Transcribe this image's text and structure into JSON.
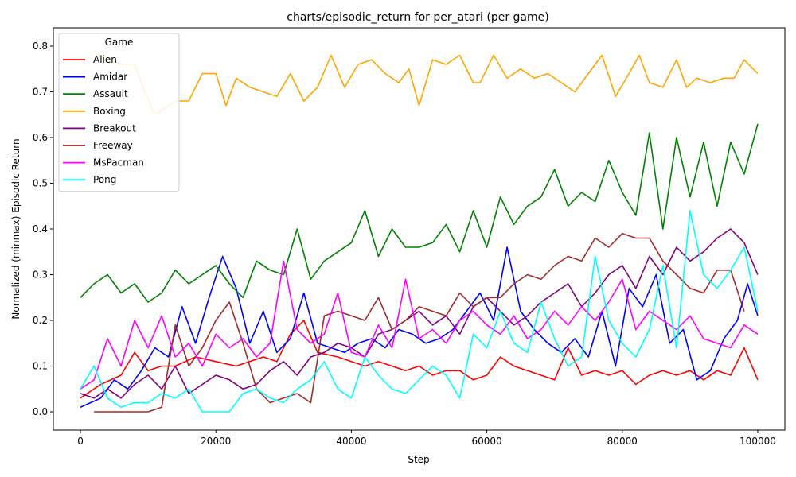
{
  "chart_data": {
    "type": "line",
    "title": "charts/episodic_return for per_atari (per game)",
    "xlabel": "Step",
    "ylabel": "Normalized (minmax) Episodic Return",
    "xlim": [
      -4000,
      104000
    ],
    "ylim": [
      -0.04,
      0.84
    ],
    "xticks": [
      0,
      20000,
      40000,
      60000,
      80000,
      100000
    ],
    "yticks": [
      0.0,
      0.1,
      0.2,
      0.3,
      0.4,
      0.5,
      0.6,
      0.7,
      0.8
    ],
    "ytick_labels": [
      "0.0",
      "0.1",
      "0.2",
      "0.3",
      "0.4",
      "0.5",
      "0.6",
      "0.7",
      "0.8"
    ],
    "grid": false,
    "legend": {
      "title": "Game",
      "placement": "top-left"
    },
    "series": [
      {
        "name": "Alien",
        "color": "#ff0000",
        "x": [
          0,
          3000,
          6000,
          8000,
          10000,
          12000,
          14000,
          17000,
          20000,
          23000,
          25000,
          27000,
          29000,
          31000,
          33000,
          35000,
          38000,
          40000,
          42000,
          44000,
          46000,
          48000,
          50000,
          52000,
          54000,
          56000,
          58000,
          60000,
          62000,
          64000,
          66000,
          68000,
          70000,
          72000,
          74000,
          76000,
          78000,
          80000,
          82000,
          84000,
          86000,
          88000,
          90000,
          92000,
          94000,
          96000,
          98000,
          100000
        ],
        "y": [
          0.03,
          0.06,
          0.08,
          0.13,
          0.09,
          0.1,
          0.1,
          0.12,
          0.11,
          0.1,
          0.11,
          0.12,
          0.11,
          0.17,
          0.2,
          0.13,
          0.12,
          0.11,
          0.1,
          0.11,
          0.1,
          0.09,
          0.1,
          0.08,
          0.09,
          0.09,
          0.07,
          0.08,
          0.12,
          0.1,
          0.09,
          0.08,
          0.07,
          0.14,
          0.08,
          0.09,
          0.08,
          0.09,
          0.06,
          0.08,
          0.09,
          0.08,
          0.09,
          0.07,
          0.09,
          0.08,
          0.14,
          0.07
        ]
      },
      {
        "name": "Amidar",
        "color": "#0000ff",
        "x": [
          0,
          3000,
          5000,
          7000,
          9000,
          11000,
          13000,
          15000,
          17000,
          19000,
          21000,
          23000,
          25000,
          27000,
          29000,
          31000,
          33000,
          35000,
          37000,
          39000,
          41000,
          43000,
          45000,
          47000,
          49000,
          51000,
          53000,
          55000,
          57000,
          59000,
          61000,
          63000,
          65000,
          67000,
          69000,
          71000,
          73000,
          75000,
          77000,
          79000,
          81000,
          83000,
          85000,
          87000,
          89000,
          91000,
          93000,
          95000,
          97000,
          98500,
          100000
        ],
        "y": [
          0.01,
          0.03,
          0.07,
          0.05,
          0.09,
          0.14,
          0.12,
          0.23,
          0.15,
          0.25,
          0.34,
          0.27,
          0.15,
          0.22,
          0.13,
          0.16,
          0.26,
          0.15,
          0.14,
          0.13,
          0.15,
          0.16,
          0.14,
          0.18,
          0.17,
          0.15,
          0.16,
          0.18,
          0.22,
          0.26,
          0.2,
          0.36,
          0.22,
          0.18,
          0.15,
          0.13,
          0.16,
          0.12,
          0.22,
          0.1,
          0.27,
          0.23,
          0.3,
          0.15,
          0.18,
          0.07,
          0.09,
          0.16,
          0.2,
          0.28,
          0.21
        ]
      },
      {
        "name": "Assault",
        "color": "#008000",
        "x": [
          0,
          2000,
          4000,
          6000,
          8000,
          10000,
          12000,
          14000,
          16000,
          18000,
          20000,
          22000,
          24000,
          26000,
          28000,
          30000,
          32000,
          34000,
          36000,
          38000,
          40000,
          42000,
          44000,
          46000,
          48000,
          50000,
          52000,
          54000,
          56000,
          58000,
          60000,
          62000,
          64000,
          66000,
          68000,
          70000,
          72000,
          74000,
          76000,
          78000,
          80000,
          82000,
          84000,
          86000,
          88000,
          90000,
          92000,
          94000,
          96000,
          98000,
          100000
        ],
        "y": [
          0.25,
          0.28,
          0.3,
          0.26,
          0.28,
          0.24,
          0.26,
          0.31,
          0.28,
          0.3,
          0.32,
          0.28,
          0.25,
          0.33,
          0.31,
          0.3,
          0.4,
          0.29,
          0.33,
          0.35,
          0.37,
          0.44,
          0.34,
          0.4,
          0.36,
          0.36,
          0.37,
          0.41,
          0.35,
          0.44,
          0.36,
          0.47,
          0.41,
          0.45,
          0.47,
          0.53,
          0.45,
          0.48,
          0.46,
          0.55,
          0.48,
          0.43,
          0.61,
          0.4,
          0.6,
          0.47,
          0.59,
          0.45,
          0.59,
          0.52,
          0.63
        ]
      },
      {
        "name": "Boxing",
        "color": "#ffa500",
        "x": [
          2000,
          4000,
          6000,
          8000,
          9500,
          11000,
          14000,
          16000,
          18000,
          20000,
          21500,
          23000,
          25000,
          27000,
          29000,
          31000,
          33000,
          35000,
          37000,
          39000,
          41000,
          43000,
          45000,
          47000,
          48500,
          50000,
          52000,
          54000,
          56000,
          58000,
          59000,
          61000,
          63000,
          65000,
          67000,
          69000,
          71000,
          73000,
          75000,
          77000,
          79000,
          81000,
          82500,
          84000,
          86000,
          88000,
          89500,
          91000,
          93000,
          95000,
          96500,
          98000,
          100000
        ],
        "y": [
          0.79,
          0.77,
          0.76,
          0.76,
          0.7,
          0.65,
          0.68,
          0.68,
          0.74,
          0.74,
          0.67,
          0.73,
          0.71,
          0.7,
          0.69,
          0.74,
          0.68,
          0.71,
          0.78,
          0.71,
          0.76,
          0.77,
          0.74,
          0.72,
          0.75,
          0.67,
          0.77,
          0.76,
          0.78,
          0.72,
          0.72,
          0.78,
          0.73,
          0.75,
          0.73,
          0.74,
          0.72,
          0.7,
          0.74,
          0.78,
          0.69,
          0.74,
          0.78,
          0.72,
          0.71,
          0.77,
          0.71,
          0.73,
          0.72,
          0.73,
          0.73,
          0.77,
          0.74
        ]
      },
      {
        "name": "Breakout",
        "color": "#800080",
        "x": [
          0,
          2000,
          4000,
          6000,
          8000,
          10000,
          12000,
          14000,
          16000,
          18000,
          20000,
          22000,
          24000,
          26000,
          28000,
          30000,
          32000,
          34000,
          36000,
          38000,
          40000,
          42000,
          44000,
          46000,
          48000,
          50000,
          52000,
          54000,
          56000,
          58000,
          60000,
          62000,
          64000,
          66000,
          68000,
          70000,
          72000,
          74000,
          76000,
          78000,
          80000,
          82000,
          84000,
          86000,
          88000,
          90000,
          92000,
          94000,
          96000,
          98000,
          100000
        ],
        "y": [
          0.04,
          0.03,
          0.05,
          0.03,
          0.06,
          0.08,
          0.05,
          0.1,
          0.04,
          0.06,
          0.08,
          0.07,
          0.05,
          0.06,
          0.09,
          0.11,
          0.08,
          0.12,
          0.13,
          0.15,
          0.14,
          0.12,
          0.17,
          0.18,
          0.2,
          0.22,
          0.19,
          0.21,
          0.17,
          0.23,
          0.25,
          0.22,
          0.19,
          0.21,
          0.24,
          0.26,
          0.28,
          0.23,
          0.26,
          0.3,
          0.32,
          0.27,
          0.34,
          0.3,
          0.36,
          0.33,
          0.35,
          0.38,
          0.4,
          0.37,
          0.3
        ]
      },
      {
        "name": "Freeway",
        "color": "#a52a2a",
        "x": [
          2000,
          5000,
          8000,
          10000,
          12000,
          14000,
          16000,
          18000,
          20000,
          22000,
          24000,
          26000,
          28000,
          30000,
          32000,
          34000,
          36000,
          38000,
          40000,
          42000,
          44000,
          46000,
          48000,
          50000,
          52000,
          54000,
          56000,
          58000,
          60000,
          62000,
          64000,
          66000,
          68000,
          70000,
          72000,
          74000,
          76000,
          78000,
          80000,
          82000,
          84000,
          86000,
          88000,
          90000,
          92000,
          94000,
          96000,
          98000
        ],
        "y": [
          0.0,
          0.0,
          0.0,
          0.0,
          0.01,
          0.19,
          0.1,
          0.14,
          0.2,
          0.24,
          0.15,
          0.05,
          0.02,
          0.03,
          0.04,
          0.02,
          0.21,
          0.22,
          0.21,
          0.2,
          0.25,
          0.18,
          0.2,
          0.23,
          0.22,
          0.21,
          0.26,
          0.23,
          0.25,
          0.25,
          0.28,
          0.3,
          0.29,
          0.32,
          0.34,
          0.33,
          0.38,
          0.36,
          0.39,
          0.38,
          0.38,
          0.33,
          0.3,
          0.27,
          0.26,
          0.31,
          0.31,
          0.22
        ]
      },
      {
        "name": "MsPacman",
        "color": "#ff00ff",
        "x": [
          0,
          2000,
          4000,
          6000,
          8000,
          10000,
          12000,
          14000,
          16000,
          18000,
          20000,
          22000,
          24000,
          26000,
          28000,
          30000,
          32000,
          34000,
          36000,
          38000,
          40000,
          42000,
          44000,
          46000,
          48000,
          50000,
          52000,
          54000,
          56000,
          58000,
          60000,
          62000,
          64000,
          66000,
          68000,
          70000,
          72000,
          74000,
          76000,
          78000,
          80000,
          82000,
          84000,
          86000,
          88000,
          90000,
          92000,
          94000,
          96000,
          98000,
          100000
        ],
        "y": [
          0.05,
          0.07,
          0.16,
          0.1,
          0.2,
          0.14,
          0.21,
          0.12,
          0.15,
          0.1,
          0.17,
          0.14,
          0.16,
          0.12,
          0.15,
          0.33,
          0.18,
          0.15,
          0.17,
          0.26,
          0.13,
          0.12,
          0.19,
          0.14,
          0.29,
          0.16,
          0.18,
          0.15,
          0.2,
          0.22,
          0.19,
          0.17,
          0.21,
          0.16,
          0.18,
          0.22,
          0.19,
          0.23,
          0.2,
          0.24,
          0.29,
          0.18,
          0.22,
          0.2,
          0.18,
          0.21,
          0.16,
          0.15,
          0.14,
          0.19,
          0.17
        ]
      },
      {
        "name": "Pong",
        "color": "#00ffff",
        "x": [
          0,
          2000,
          4000,
          6000,
          8000,
          10000,
          12000,
          14000,
          16000,
          18000,
          20000,
          22000,
          24000,
          26000,
          28000,
          30000,
          32000,
          34000,
          36000,
          38000,
          40000,
          42000,
          44000,
          46000,
          48000,
          50000,
          52000,
          54000,
          56000,
          58000,
          60000,
          62000,
          64000,
          66000,
          68000,
          70000,
          72000,
          74000,
          76000,
          78000,
          80000,
          82000,
          84000,
          86000,
          88000,
          90000,
          92000,
          94000,
          96000,
          98000,
          100000
        ],
        "y": [
          0.05,
          0.1,
          0.03,
          0.01,
          0.02,
          0.02,
          0.04,
          0.03,
          0.05,
          0.0,
          0.0,
          0.0,
          0.04,
          0.05,
          0.03,
          0.02,
          0.05,
          0.07,
          0.11,
          0.05,
          0.03,
          0.12,
          0.08,
          0.05,
          0.04,
          0.07,
          0.1,
          0.08,
          0.03,
          0.17,
          0.14,
          0.22,
          0.15,
          0.13,
          0.24,
          0.16,
          0.1,
          0.12,
          0.34,
          0.2,
          0.15,
          0.12,
          0.18,
          0.32,
          0.14,
          0.44,
          0.3,
          0.27,
          0.31,
          0.36,
          0.22
        ]
      }
    ]
  }
}
